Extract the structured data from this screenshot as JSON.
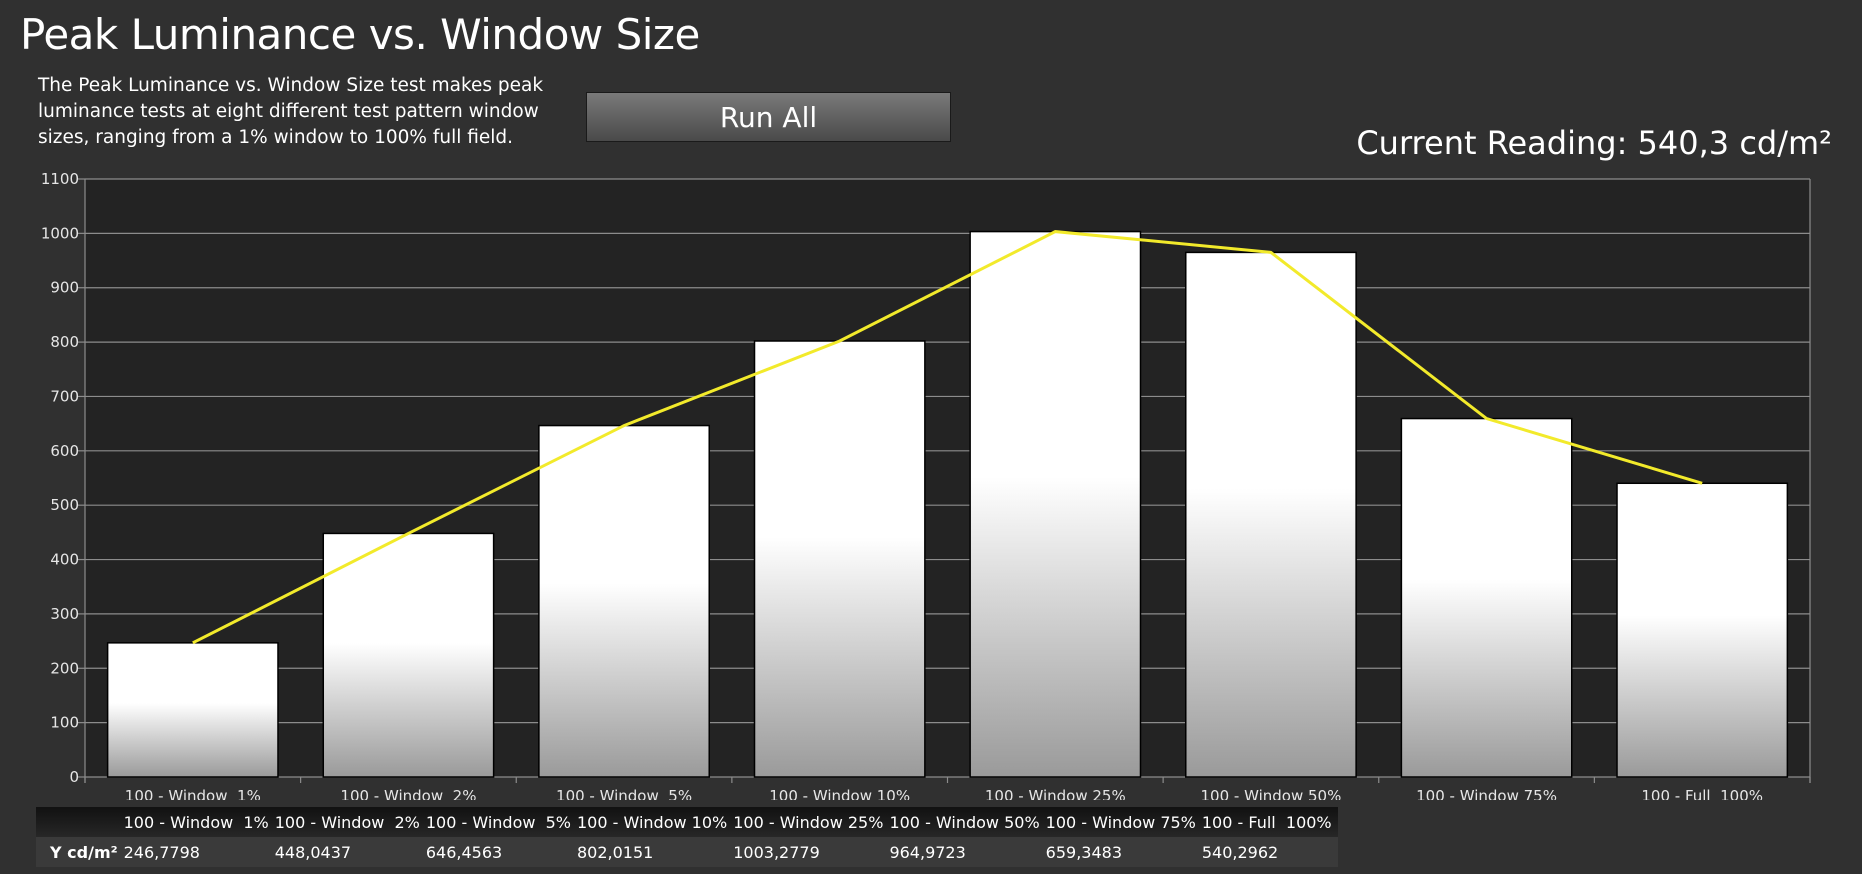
{
  "page": {
    "title": "Peak Luminance vs. Window Size",
    "description": "The Peak Luminance vs. Window Size test makes peak luminance tests at eight different test pattern window sizes, ranging from a 1% window to 100% full field.",
    "run_all_label": "Run All",
    "current_reading": "Current Reading: 540,3 cd/m²"
  },
  "colors": {
    "background": "#303030",
    "plot_background": "#232323",
    "bar_top": "#ffffff",
    "bar_bottom": "#9a9a9a",
    "line": "#f2ea2b",
    "grid": "#8c8c8c"
  },
  "chart_data": {
    "type": "bar",
    "categories": [
      "100 - Window  1%",
      "100 - Window  2%",
      "100 - Window  5%",
      "100 - Window 10%",
      "100 - Window 25%",
      "100 - Window 50%",
      "100 - Window 75%",
      "100 - Full  100%"
    ],
    "values": [
      246.7798,
      448.0437,
      646.4563,
      802.0151,
      1003.2779,
      964.9723,
      659.3483,
      540.2962
    ],
    "overlay_line": {
      "color": "#f2ea2b",
      "values": [
        246.7798,
        448.0437,
        646.4563,
        802.0151,
        1003.2779,
        964.9723,
        659.3483,
        540.2962
      ]
    },
    "ylim": [
      0,
      1100
    ],
    "yticks": [
      "0",
      "100",
      "200",
      "300",
      "400",
      "500",
      "600",
      "700",
      "800",
      "900",
      "1000",
      "1100"
    ],
    "grid": true,
    "xlabel": "",
    "ylabel": ""
  },
  "table": {
    "row_label": "Y cd/m²",
    "headers": [
      "100 - Window  1%",
      "100 - Window  2%",
      "100 - Window  5%",
      "100 - Window 10%",
      "100 - Window 25%",
      "100 - Window 50%",
      "100 - Window 75%",
      "100 - Full  100%"
    ],
    "values": [
      "246,7798",
      "448,0437",
      "646,4563",
      "802,0151",
      "1003,2779",
      "964,9723",
      "659,3483",
      "540,2962"
    ]
  }
}
